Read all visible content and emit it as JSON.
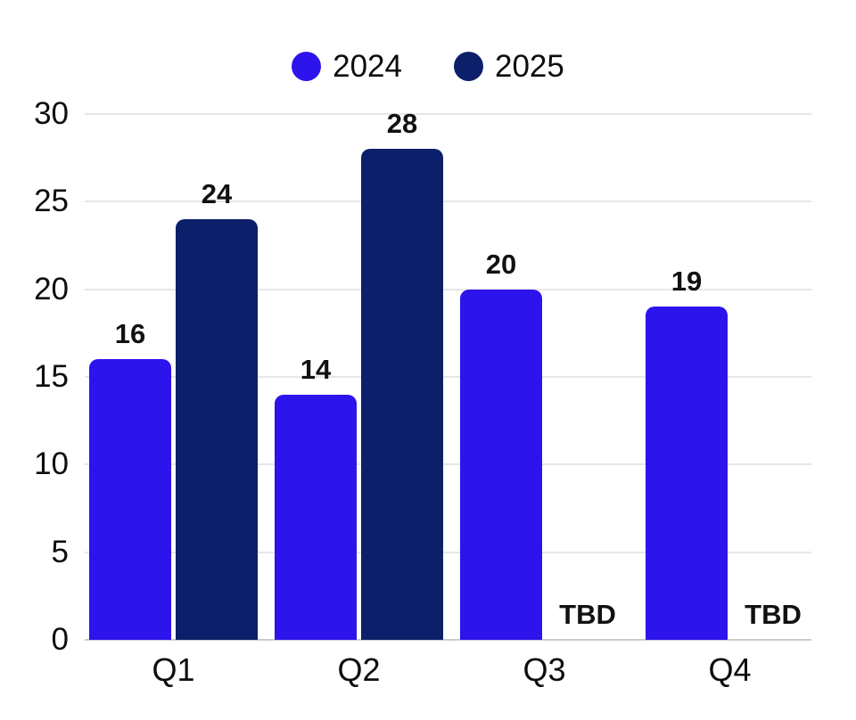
{
  "chart_data": {
    "type": "bar",
    "title": "",
    "xlabel": "",
    "ylabel": "",
    "categories": [
      "Q1",
      "Q2",
      "Q3",
      "Q4"
    ],
    "series": [
      {
        "name": "2024",
        "color": "#2d13ec",
        "values": [
          16,
          14,
          20,
          19
        ]
      },
      {
        "name": "2025",
        "color": "#0b1f6a",
        "values": [
          24,
          28,
          null,
          null
        ]
      }
    ],
    "missing_value_label": "TBD",
    "y_ticks": [
      0,
      5,
      10,
      15,
      20,
      25,
      30
    ],
    "ylim": [
      0,
      30
    ],
    "grid": true,
    "legend_position": "top",
    "colors": {
      "gridline": "#e6e6e6",
      "baseline": "#cccccc",
      "text": "#0d0d0d",
      "value_label": "#111111"
    }
  }
}
